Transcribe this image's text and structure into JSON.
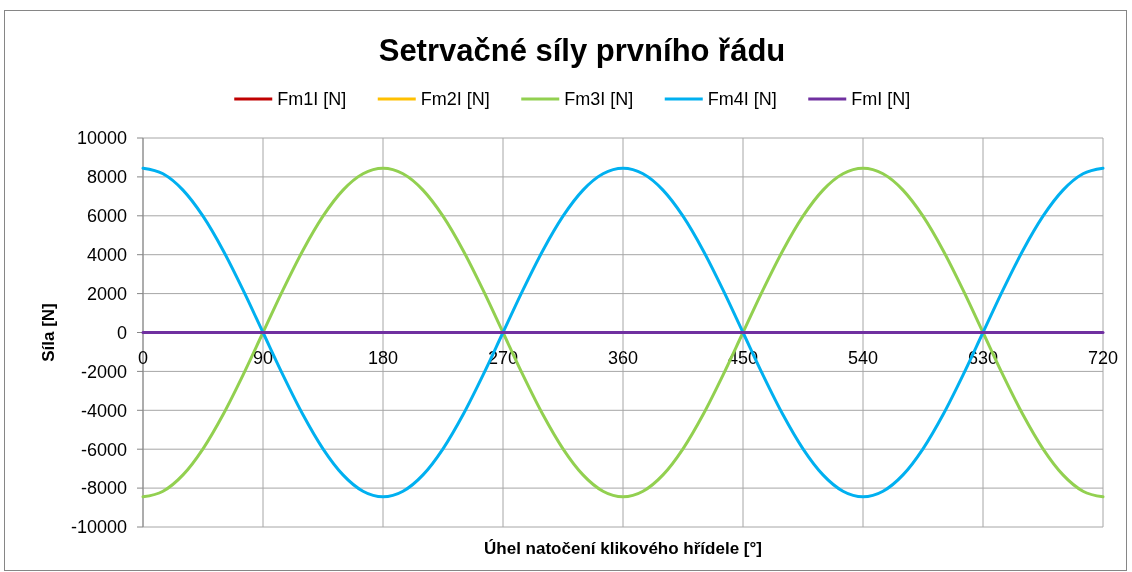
{
  "chart_data": {
    "type": "line",
    "title": "Setrvačné síly prvního řádu",
    "xlabel": "Úhel natočení klikového hřídele [°]",
    "ylabel": "Síla [N]",
    "x": [
      0,
      15,
      30,
      45,
      60,
      75,
      90,
      105,
      120,
      135,
      150,
      165,
      180,
      195,
      210,
      225,
      240,
      255,
      270,
      285,
      300,
      315,
      330,
      345,
      360,
      375,
      390,
      405,
      420,
      435,
      450,
      465,
      480,
      495,
      510,
      525,
      540,
      555,
      570,
      585,
      600,
      615,
      630,
      645,
      660,
      675,
      690,
      705,
      720
    ],
    "xlim": [
      0,
      720
    ],
    "xticks": [
      0,
      90,
      180,
      270,
      360,
      450,
      540,
      630,
      720
    ],
    "ylim": [
      -10000,
      10000
    ],
    "yticks": [
      -10000,
      -8000,
      -6000,
      -4000,
      -2000,
      0,
      2000,
      4000,
      6000,
      8000,
      10000
    ],
    "grid": true,
    "legend": "top",
    "line_style": "solid",
    "series": [
      {
        "name": "Fm1I [N]",
        "color": "#c00000",
        "values": [
          null,
          null,
          null,
          null,
          null,
          null,
          null,
          null,
          null,
          null,
          null,
          null,
          null,
          null,
          null,
          null,
          null,
          null,
          null,
          null,
          null,
          null,
          null,
          null,
          null,
          null,
          null,
          null,
          null,
          null,
          null,
          null,
          null,
          null,
          null,
          null,
          null,
          null,
          null,
          null,
          null,
          null,
          null,
          null,
          null,
          null,
          null,
          null,
          null
        ]
      },
      {
        "name": "Fm2I [N]",
        "color": "#ffc000",
        "values": [
          null,
          null,
          null,
          null,
          null,
          null,
          null,
          null,
          null,
          null,
          null,
          null,
          null,
          null,
          null,
          null,
          null,
          null,
          null,
          null,
          null,
          null,
          null,
          null,
          null,
          null,
          null,
          null,
          null,
          null,
          null,
          null,
          null,
          null,
          null,
          null,
          null,
          null,
          null,
          null,
          null,
          null,
          null,
          null,
          null,
          null,
          null,
          null,
          null
        ]
      },
      {
        "name": "Fm3I [N]",
        "color": "#92d050",
        "values": [
          -8450,
          -8160,
          -7320,
          -5980,
          -4230,
          -2190,
          0,
          2190,
          4230,
          5980,
          7320,
          8160,
          8450,
          8160,
          7320,
          5980,
          4230,
          2190,
          0,
          -2190,
          -4230,
          -5980,
          -7320,
          -8160,
          -8450,
          -8160,
          -7320,
          -5980,
          -4230,
          -2190,
          0,
          2190,
          4230,
          5980,
          7320,
          8160,
          8450,
          8160,
          7320,
          5980,
          4230,
          2190,
          0,
          -2190,
          -4230,
          -5980,
          -7320,
          -8160,
          -8450
        ]
      },
      {
        "name": "Fm4I [N]",
        "color": "#00b0f0",
        "values": [
          8450,
          8160,
          7320,
          5980,
          4230,
          2190,
          0,
          -2190,
          -4230,
          -5980,
          -7320,
          -8160,
          -8450,
          -8160,
          -7320,
          -5980,
          -4230,
          -2190,
          0,
          2190,
          4230,
          5980,
          7320,
          8160,
          8450,
          8160,
          7320,
          5980,
          4230,
          2190,
          0,
          -2190,
          -4230,
          -5980,
          -7320,
          -8160,
          -8450,
          -8160,
          -7320,
          -5980,
          -4230,
          -2190,
          0,
          2190,
          4230,
          5980,
          7320,
          8160,
          8450
        ]
      },
      {
        "name": "FmI [N]",
        "color": "#7030a0",
        "values": [
          0,
          0,
          0,
          0,
          0,
          0,
          0,
          0,
          0,
          0,
          0,
          0,
          0,
          0,
          0,
          0,
          0,
          0,
          0,
          0,
          0,
          0,
          0,
          0,
          0,
          0,
          0,
          0,
          0,
          0,
          0,
          0,
          0,
          0,
          0,
          0,
          0,
          0,
          0,
          0,
          0,
          0,
          0,
          0,
          0,
          0,
          0,
          0,
          0
        ]
      }
    ]
  }
}
